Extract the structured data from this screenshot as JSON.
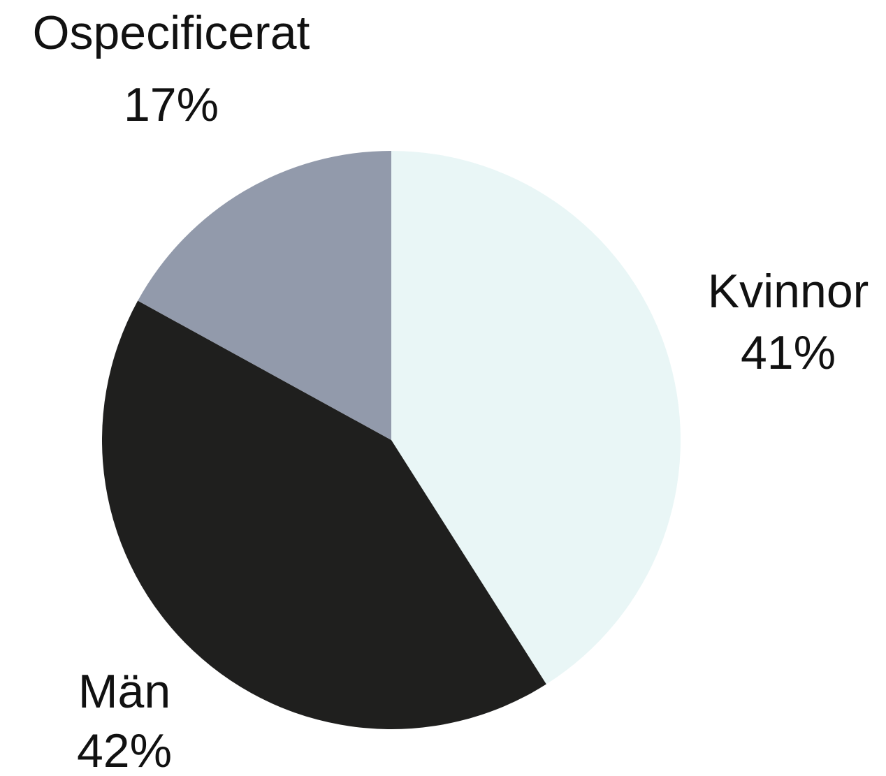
{
  "chart_data": {
    "type": "pie",
    "categories": [
      "Kvinnor",
      "Män",
      "Ospecificerat"
    ],
    "values": [
      41,
      42,
      17
    ],
    "value_labels": [
      "41%",
      "42%",
      "17%"
    ],
    "colors": [
      "#e9f6f6",
      "#1f1f1e",
      "#929aab"
    ]
  }
}
